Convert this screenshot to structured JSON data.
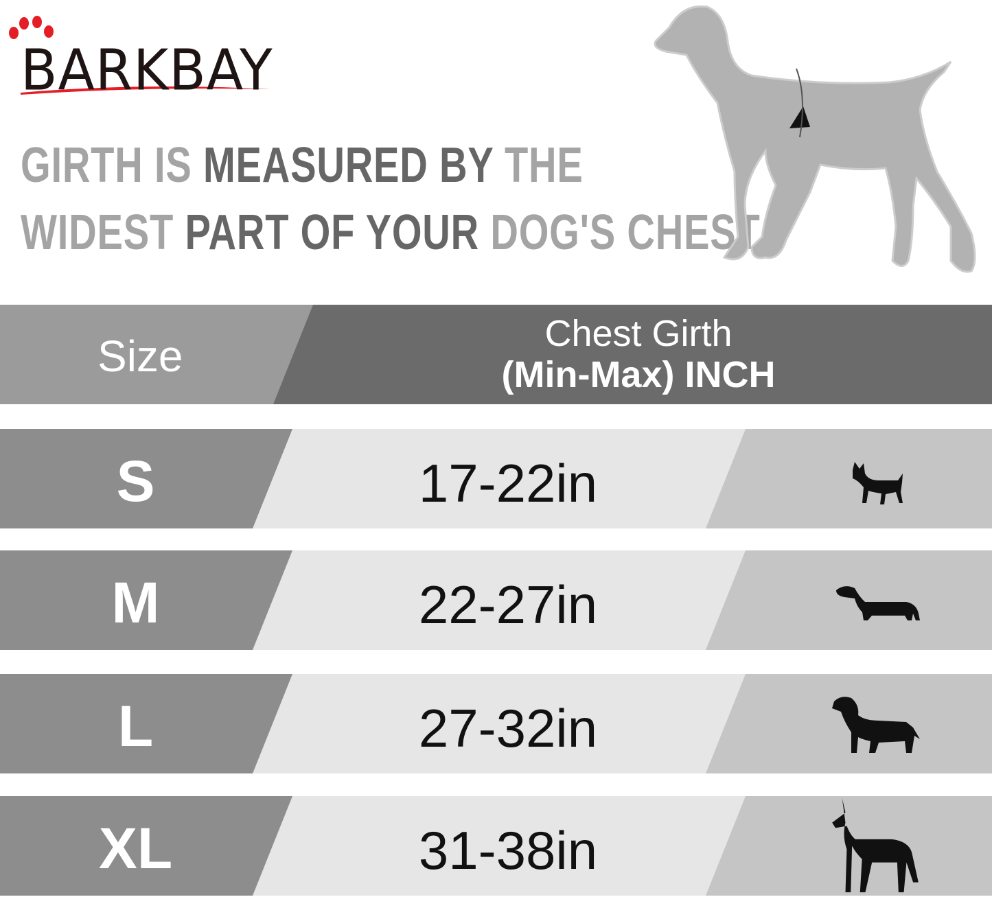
{
  "brand": {
    "logo_text": "BARKBAY",
    "accent": "#e41e26"
  },
  "headline": {
    "line1": [
      {
        "t": "GIRTH IS ",
        "tone": "light"
      },
      {
        "t": "MEASURED BY ",
        "tone": "dark"
      },
      {
        "t": "THE",
        "tone": "light"
      }
    ],
    "line2": [
      {
        "t": "WIDEST ",
        "tone": "light"
      },
      {
        "t": "PART OF YOUR ",
        "tone": "dark"
      },
      {
        "t": "DOG'S CHEST",
        "tone": "light"
      },
      {
        "t": ".",
        "tone": "dark"
      }
    ]
  },
  "table": {
    "header": {
      "size": "Size",
      "girth_line1": "Chest Girth",
      "girth_line2": "(Min-Max)  INCH"
    },
    "rows": [
      {
        "size": "S",
        "girth": "17-22in",
        "icon": "chihuahua-icon"
      },
      {
        "size": "M",
        "girth": "22-27in",
        "icon": "dachshund-icon"
      },
      {
        "size": "L",
        "girth": "27-32in",
        "icon": "labrador-icon"
      },
      {
        "size": "XL",
        "girth": "31-38in",
        "icon": "great-dane-icon"
      }
    ]
  }
}
